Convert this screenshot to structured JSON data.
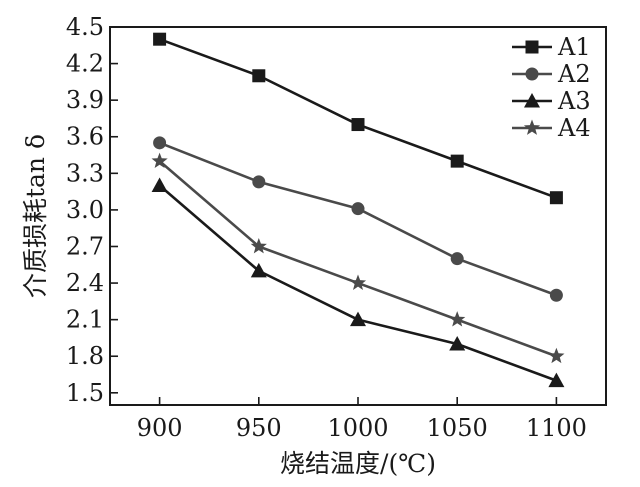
{
  "chart_data": {
    "type": "line",
    "xlabel": "烧结温度/(℃)",
    "ylabel": "介质损耗tan δ",
    "x": [
      900,
      950,
      1000,
      1050,
      1100
    ],
    "xticks": [
      "900",
      "950",
      "1000",
      "1050",
      "1100"
    ],
    "xlim": [
      875,
      1125
    ],
    "ylim": [
      1.4,
      4.5
    ],
    "yticks": [
      "1.5",
      "1.8",
      "2.1",
      "2.4",
      "2.7",
      "3.0",
      "3.3",
      "3.6",
      "3.9",
      "4.2",
      "4.5"
    ],
    "grid": false,
    "legend_position": "top-right",
    "series": [
      {
        "name": "A1",
        "marker": "square",
        "color": "#1a1a1a",
        "values": [
          4.4,
          4.1,
          3.7,
          3.4,
          3.1
        ]
      },
      {
        "name": "A2",
        "marker": "circle",
        "color": "#4a4a4a",
        "values": [
          3.55,
          3.23,
          3.01,
          2.6,
          2.3
        ]
      },
      {
        "name": "A3",
        "marker": "triangle",
        "color": "#1a1a1a",
        "values": [
          3.2,
          2.5,
          2.1,
          1.9,
          1.6
        ]
      },
      {
        "name": "A4",
        "marker": "star",
        "color": "#4a4a4a",
        "values": [
          3.4,
          2.7,
          2.4,
          2.1,
          1.8
        ]
      }
    ]
  }
}
